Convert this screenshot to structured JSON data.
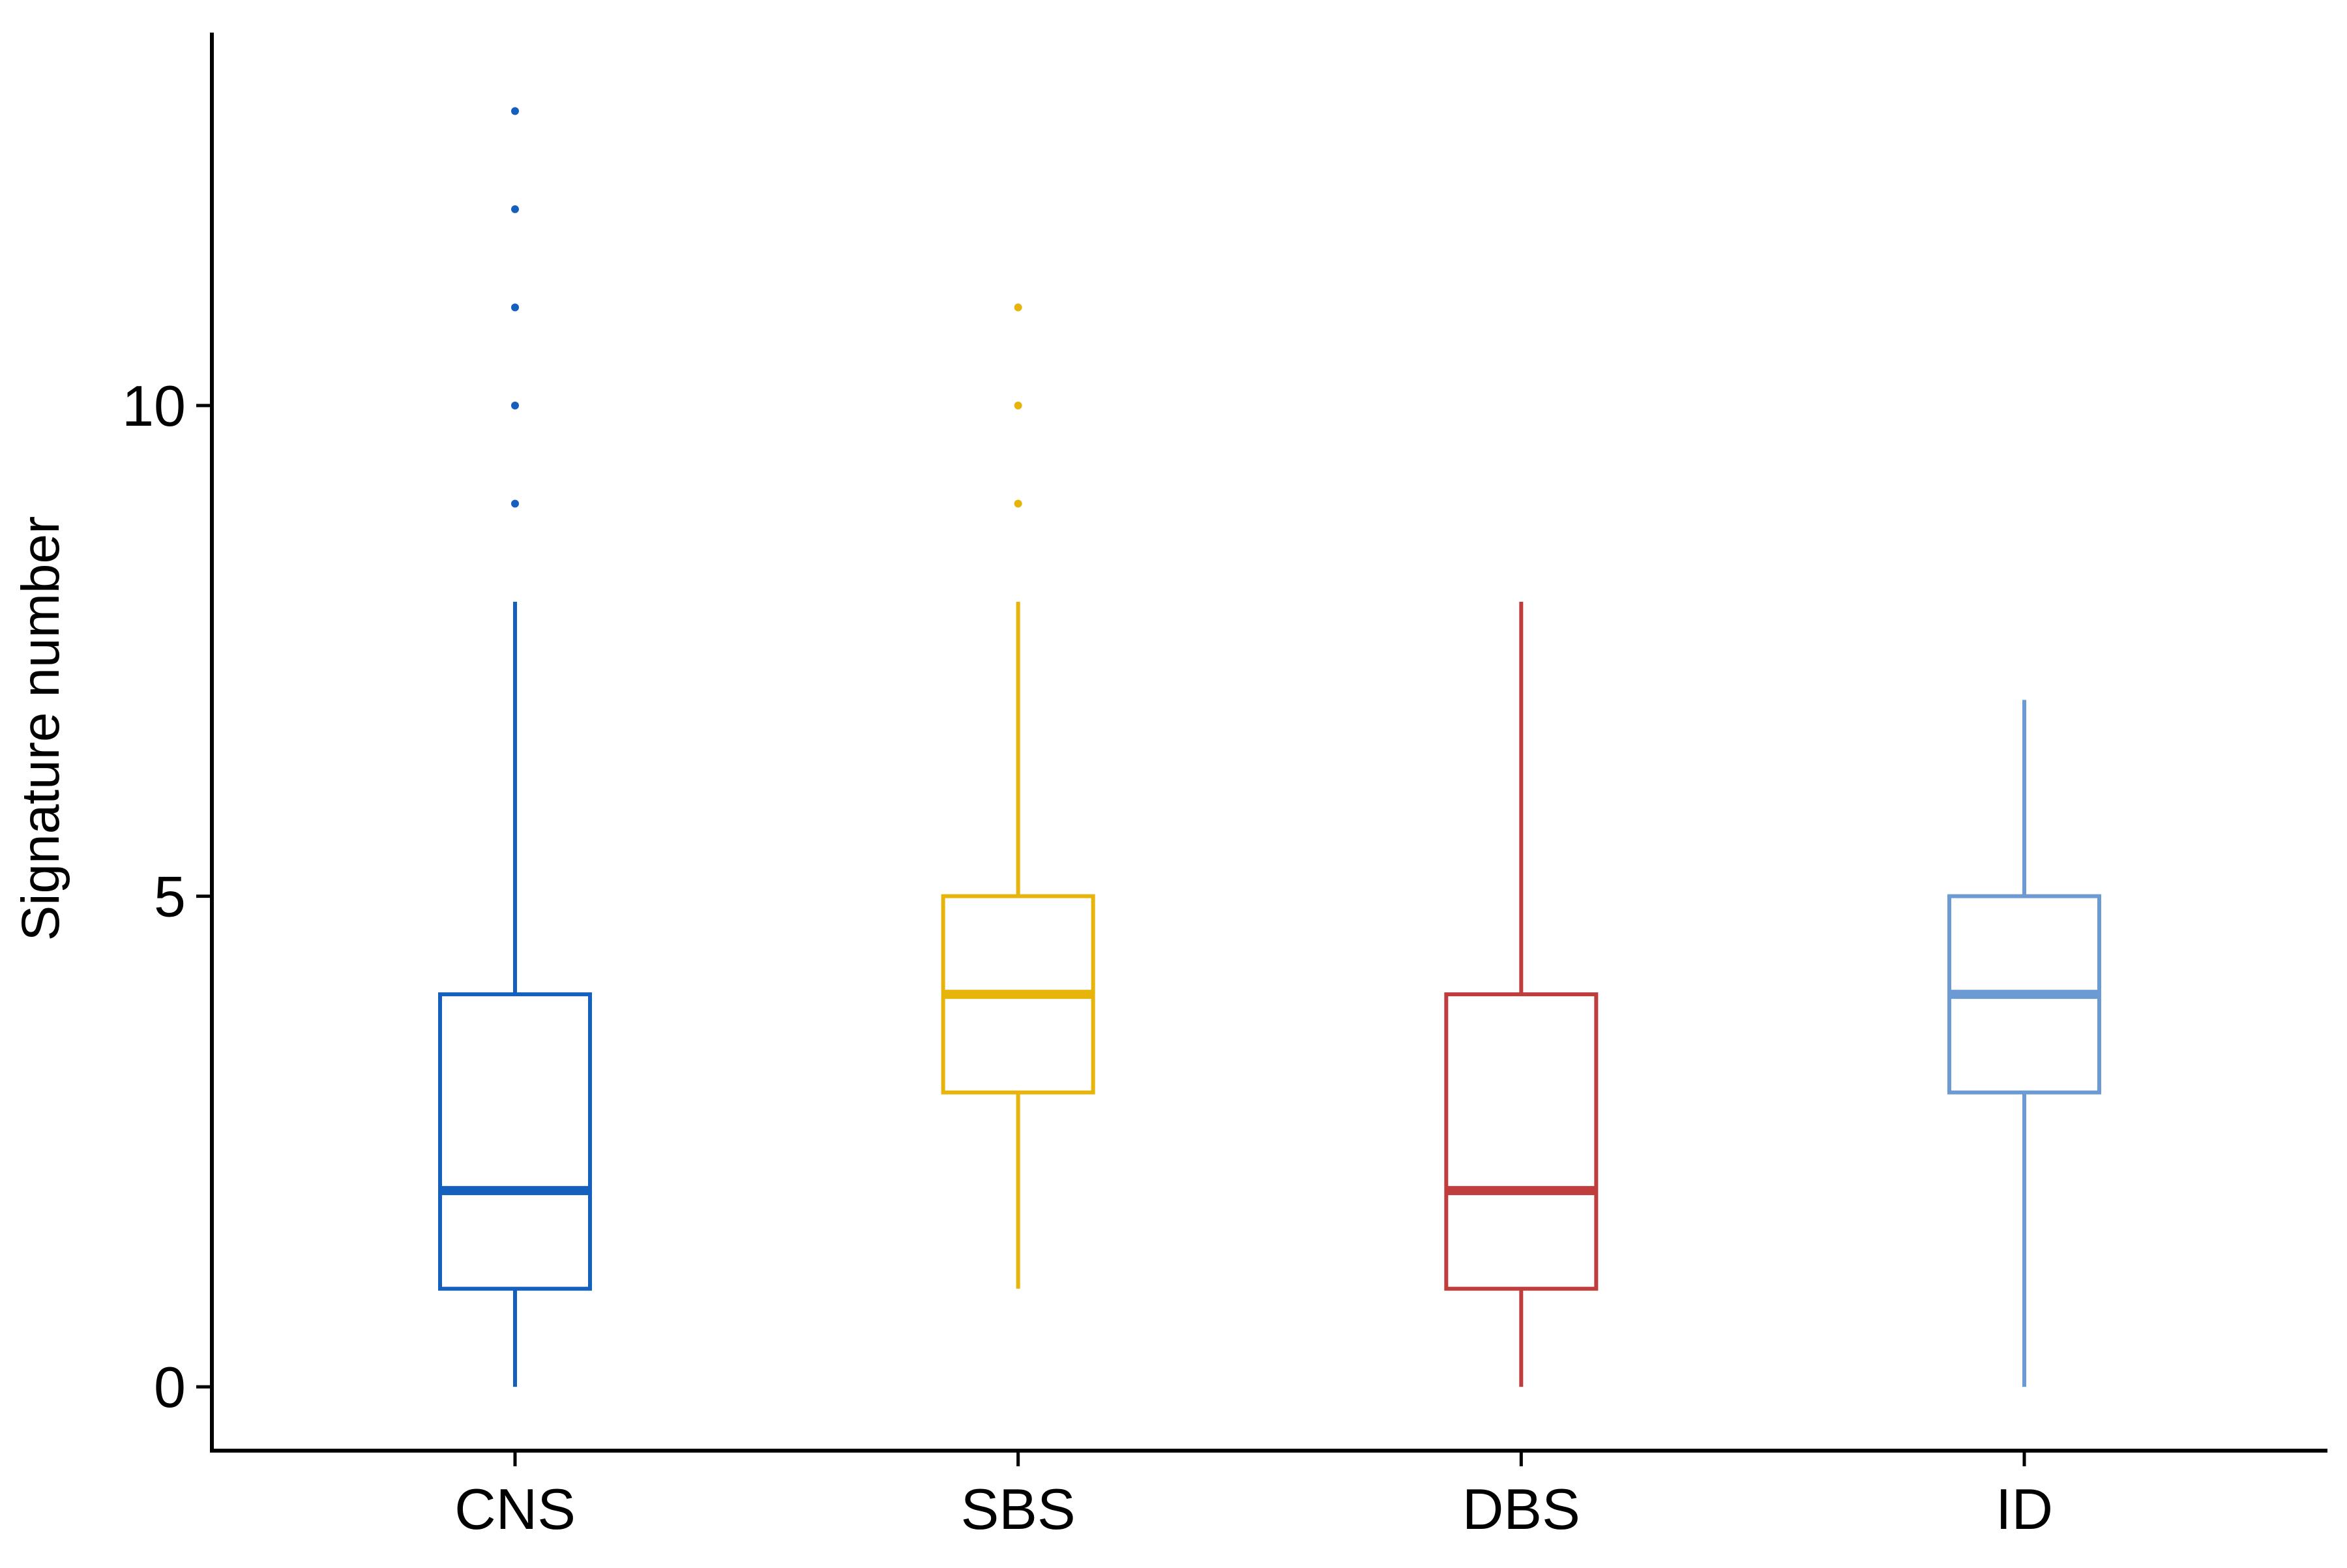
{
  "chart_data": {
    "type": "boxplot",
    "title": "",
    "xlabel": "",
    "ylabel": "Signature number",
    "ylim": [
      -0.65,
      13.8
    ],
    "yticks": [
      0,
      5,
      10
    ],
    "categories": [
      "CNS",
      "SBS",
      "DBS",
      "ID"
    ],
    "grid": false,
    "legend": "none",
    "series": [
      {
        "category": "CNS",
        "color": "#1560bd",
        "whisker_low": 0,
        "q1": 1,
        "median": 2,
        "q3": 4,
        "whisker_high": 8,
        "outliers": [
          9,
          10,
          11,
          12,
          13
        ]
      },
      {
        "category": "SBS",
        "color": "#e6b40b",
        "whisker_low": 1,
        "q1": 3,
        "median": 4,
        "q3": 5,
        "whisker_high": 8,
        "outliers": [
          9,
          10,
          11
        ]
      },
      {
        "category": "DBS",
        "color": "#c03d3e",
        "whisker_low": 0,
        "q1": 1,
        "median": 2,
        "q3": 4,
        "whisker_high": 8,
        "outliers": []
      },
      {
        "category": "ID",
        "color": "#6c9bd4",
        "whisker_low": 0,
        "q1": 3,
        "median": 4,
        "q3": 5,
        "whisker_high": 7,
        "outliers": []
      }
    ]
  }
}
